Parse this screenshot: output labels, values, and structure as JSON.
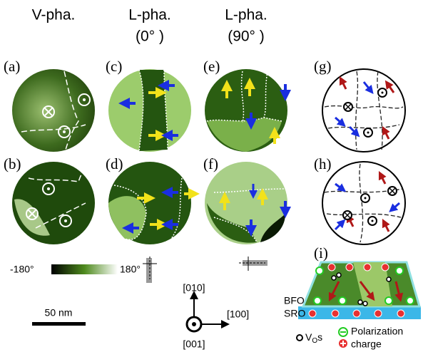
{
  "headers": [
    {
      "lines": [
        "V-pha."
      ]
    },
    {
      "lines": [
        "L-pha.",
        "(0°  )"
      ]
    },
    {
      "lines": [
        "L-pha.",
        "(90°  )"
      ]
    }
  ],
  "panels": [
    "(a)",
    "(b)",
    "(c)",
    "(d)",
    "(e)",
    "(f)",
    "(g)",
    "(h)",
    "(i)"
  ],
  "colorbar": {
    "min": "-180°",
    "max": "180°"
  },
  "scale_bar": "50 nm",
  "axes": [
    "[010]",
    "[100]",
    "[001]"
  ],
  "schematic": {
    "layers": [
      "BFO",
      "SRO"
    ],
    "vacancy": {
      "base": "V",
      "subscript": "O",
      "suffix": "s"
    },
    "legend": [
      "Polarization",
      "charge"
    ]
  }
}
